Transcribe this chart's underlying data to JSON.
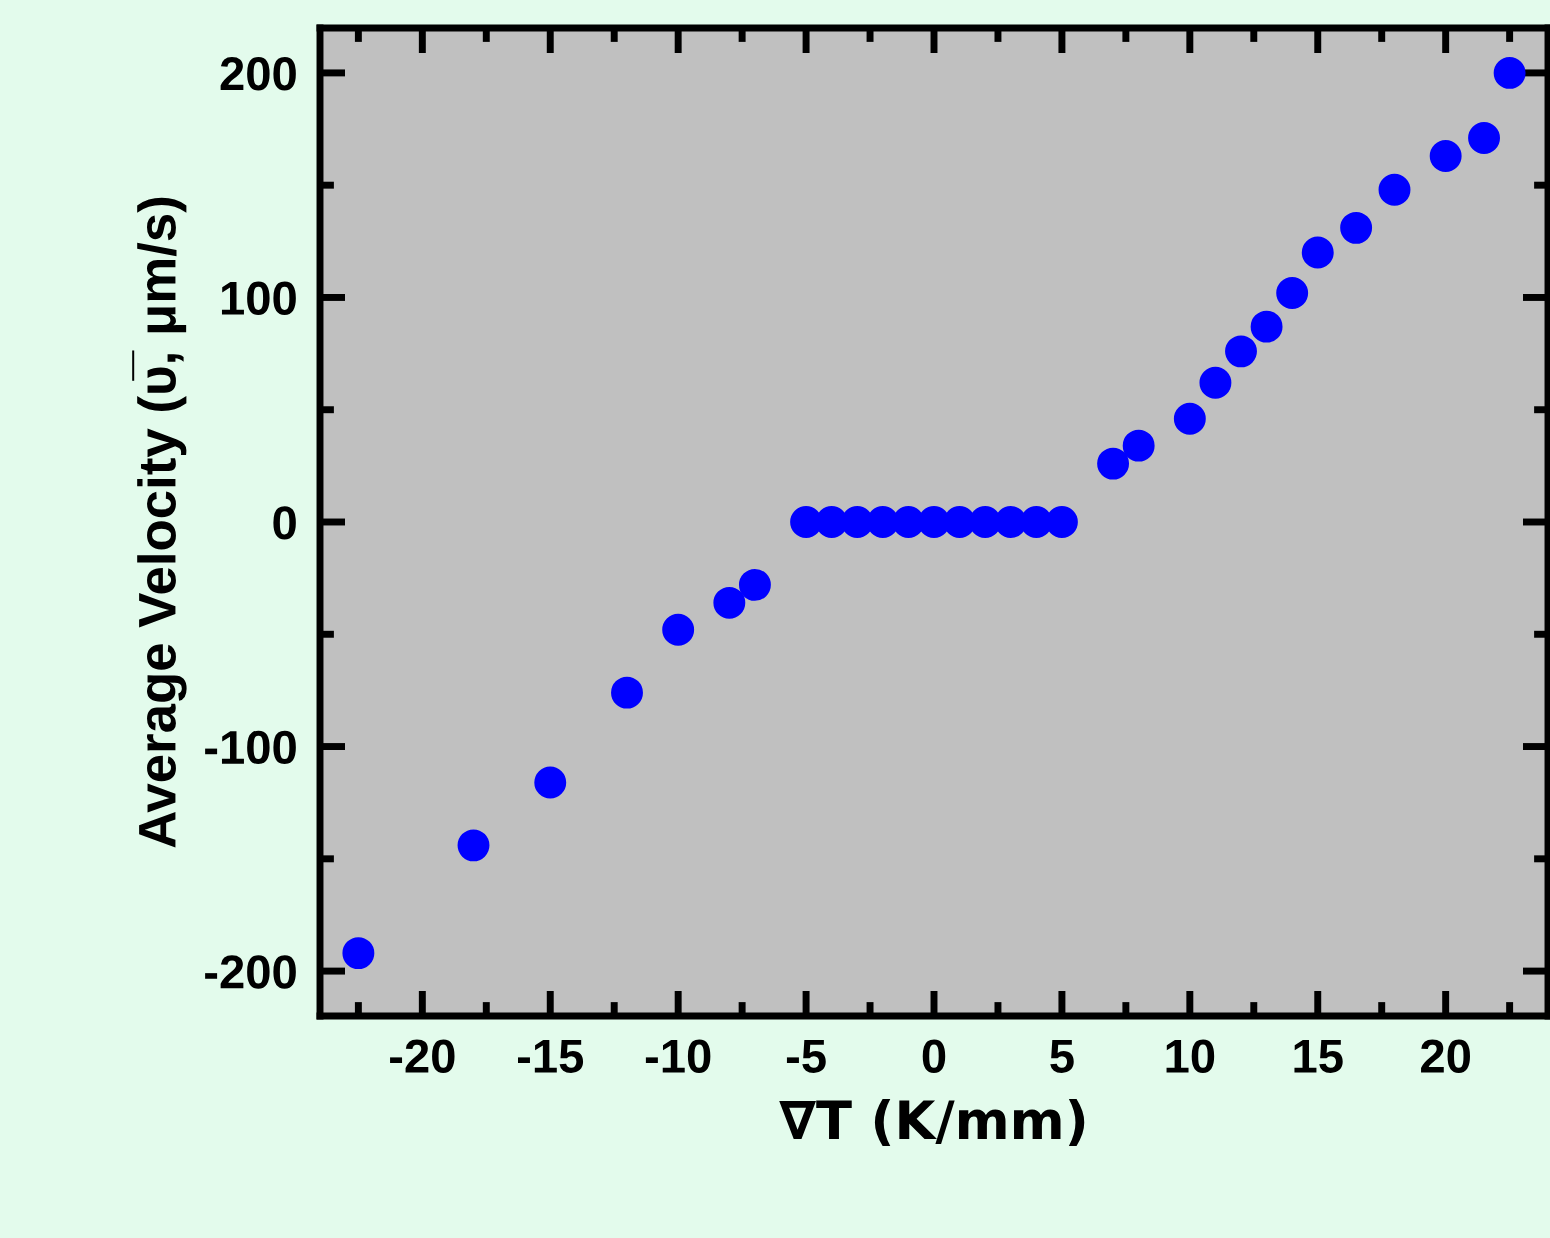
{
  "chart_data": {
    "type": "scatter",
    "xlabel": "∇T (K/mm)",
    "ylabel": "Average Velocity (υ̅, μm/s)",
    "series": [
      {
        "color": "#0000ff",
        "x": [
          -22.5,
          -18,
          -15,
          -12,
          -10,
          -8,
          -7,
          -5,
          -4,
          -3,
          -2,
          -1,
          0,
          1,
          2,
          3,
          4,
          5,
          7,
          8,
          10,
          11,
          12,
          13,
          14,
          15,
          16.5,
          18,
          20,
          21.5,
          22.5
        ],
        "values": [
          -192,
          -144,
          -116,
          -76,
          -48,
          -36,
          -28,
          0,
          0,
          0,
          0,
          0,
          0,
          0,
          0,
          0,
          0,
          0,
          26,
          34,
          46,
          62,
          76,
          87,
          102,
          120,
          131,
          148,
          163,
          171,
          200
        ]
      }
    ],
    "xlim": [
      -24,
      24
    ],
    "ylim": [
      -220,
      220
    ],
    "xticks": [
      {
        "value": -22.5,
        "label": null
      },
      -20,
      {
        "value": -17.5,
        "label": null
      },
      -15,
      {
        "value": -12.5,
        "label": null
      },
      -10,
      {
        "value": -7.5,
        "label": null
      },
      -5,
      {
        "value": -2.5,
        "label": null
      },
      0,
      {
        "value": 2.5,
        "label": null
      },
      5,
      {
        "value": 7.5,
        "label": null
      },
      10,
      {
        "value": 12.5,
        "label": null
      },
      15,
      {
        "value": 17.5,
        "label": null
      },
      20,
      {
        "value": 22.5,
        "label": null
      }
    ],
    "yticks": [
      -200,
      {
        "value": -150,
        "label": null
      },
      -100,
      {
        "value": -50,
        "label": null
      },
      0,
      {
        "value": 50,
        "label": null
      },
      100,
      {
        "value": 150,
        "label": null
      },
      200
    ],
    "marker": "circle",
    "grid": false,
    "legend": false
  }
}
